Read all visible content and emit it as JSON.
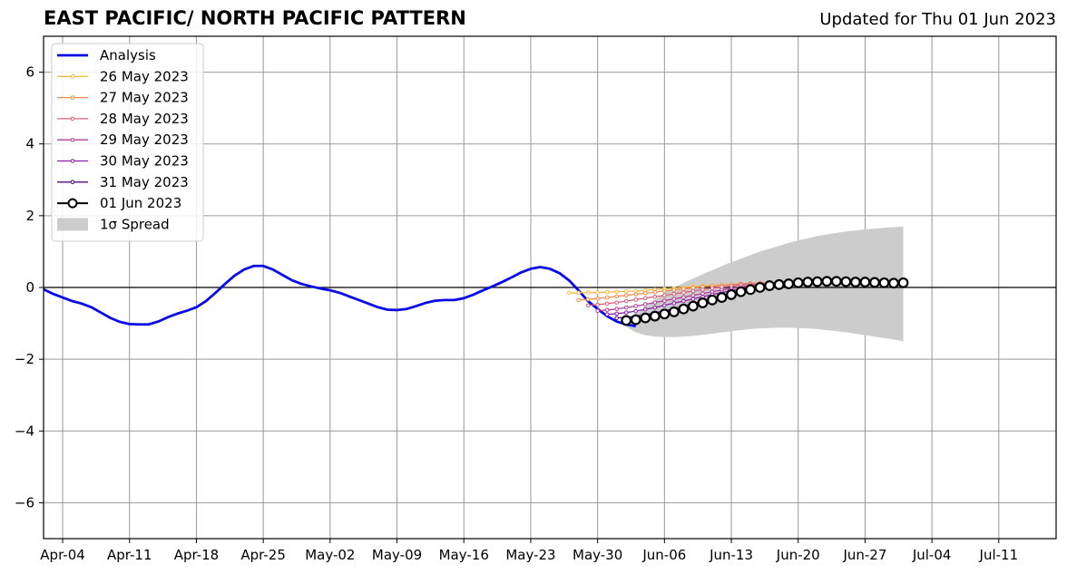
{
  "chart_data": {
    "type": "line",
    "title": "EAST PACIFIC/ NORTH PACIFIC PATTERN",
    "subtitle": "Updated for Thu 01 Jun 2023",
    "xlabel": "",
    "ylabel": "",
    "xlim": [
      "2023-04-02",
      "2023-07-17"
    ],
    "ylim": [
      -7,
      7
    ],
    "x_ticks": [
      "Apr-04",
      "Apr-11",
      "Apr-18",
      "Apr-25",
      "May-02",
      "May-09",
      "May-16",
      "May-23",
      "May-30",
      "Jun-06",
      "Jun-13",
      "Jun-20",
      "Jun-27",
      "Jul-04",
      "Jul-11"
    ],
    "y_ticks": [
      -6,
      -4,
      -2,
      0,
      2,
      4,
      6
    ],
    "y_tick_labels": [
      "−6",
      "−4",
      "−2",
      "0",
      "2",
      "4",
      "6"
    ],
    "grid": true,
    "legend_position": "upper-left",
    "colors": {
      "analysis": "#0a0ae6",
      "f0526": "#f5b942",
      "f0527": "#ee8a4a",
      "f0528": "#d9607a",
      "f0529": "#b63d95",
      "f0530": "#8c1faa",
      "f0531": "#4d0a8c",
      "f0601": "#000000",
      "spread": "#cccccc",
      "grid": "#999999"
    },
    "analysis": {
      "name": "Analysis",
      "start": "2023-04-02",
      "values": [
        -0.05,
        -0.18,
        -0.28,
        -0.38,
        -0.45,
        -0.55,
        -0.7,
        -0.85,
        -0.96,
        -1.02,
        -1.03,
        -1.03,
        -0.95,
        -0.83,
        -0.73,
        -0.65,
        -0.55,
        -0.38,
        -0.15,
        0.1,
        0.33,
        0.5,
        0.6,
        0.6,
        0.5,
        0.35,
        0.2,
        0.1,
        0.03,
        -0.03,
        -0.08,
        -0.15,
        -0.25,
        -0.35,
        -0.45,
        -0.55,
        -0.62,
        -0.63,
        -0.6,
        -0.52,
        -0.43,
        -0.37,
        -0.35,
        -0.35,
        -0.3,
        -0.2,
        -0.08,
        0.03,
        0.15,
        0.28,
        0.42,
        0.52,
        0.57,
        0.52,
        0.4,
        0.2,
        -0.08,
        -0.38,
        -0.6,
        -0.8,
        -0.95,
        -1.03,
        -1.08
      ]
    },
    "forecasts": [
      {
        "name": "26 May 2023",
        "start": "2023-05-27",
        "values": [
          -0.15,
          -0.15,
          -0.14,
          -0.14,
          -0.13,
          -0.12,
          -0.11,
          -0.1,
          -0.08,
          -0.06,
          -0.04,
          -0.02,
          0.0,
          0.02,
          0.04,
          0.06,
          0.07,
          0.08,
          0.09,
          0.1,
          0.11,
          0.12,
          0.12,
          0.13,
          0.13
        ]
      },
      {
        "name": "27 May 2023",
        "start": "2023-05-28",
        "values": [
          -0.35,
          -0.33,
          -0.31,
          -0.28,
          -0.25,
          -0.22,
          -0.19,
          -0.16,
          -0.13,
          -0.1,
          -0.07,
          -0.04,
          -0.01,
          0.02,
          0.04,
          0.06,
          0.08,
          0.1,
          0.11,
          0.12,
          0.13,
          0.14,
          0.14,
          0.15
        ]
      },
      {
        "name": "28 May 2023",
        "start": "2023-05-29",
        "values": [
          -0.5,
          -0.48,
          -0.45,
          -0.42,
          -0.38,
          -0.34,
          -0.3,
          -0.26,
          -0.22,
          -0.18,
          -0.14,
          -0.1,
          -0.06,
          -0.02,
          0.01,
          0.04,
          0.07,
          0.09,
          0.11,
          0.13,
          0.14,
          0.15,
          0.16
        ]
      },
      {
        "name": "29 May 2023",
        "start": "2023-05-30",
        "values": [
          -0.65,
          -0.63,
          -0.6,
          -0.56,
          -0.52,
          -0.47,
          -0.42,
          -0.37,
          -0.32,
          -0.27,
          -0.22,
          -0.17,
          -0.12,
          -0.07,
          -0.03,
          0.01,
          0.05,
          0.08,
          0.11,
          0.13,
          0.15,
          0.16
        ]
      },
      {
        "name": "30 May 2023",
        "start": "2023-05-31",
        "values": [
          -0.75,
          -0.73,
          -0.7,
          -0.66,
          -0.61,
          -0.56,
          -0.5,
          -0.44,
          -0.38,
          -0.32,
          -0.26,
          -0.2,
          -0.14,
          -0.09,
          -0.04,
          0.01,
          0.05,
          0.09,
          0.12,
          0.15,
          0.17
        ]
      },
      {
        "name": "31 May 2023",
        "start": "2023-06-01",
        "values": [
          -0.85,
          -0.83,
          -0.8,
          -0.76,
          -0.71,
          -0.65,
          -0.59,
          -0.52,
          -0.45,
          -0.38,
          -0.31,
          -0.24,
          -0.17,
          -0.11,
          -0.05,
          0.0,
          0.05,
          0.09,
          0.13,
          0.16
        ]
      },
      {
        "name": "01 Jun 2023",
        "start": "2023-06-02",
        "values": [
          -0.92,
          -0.9,
          -0.85,
          -0.8,
          -0.74,
          -0.68,
          -0.6,
          -0.52,
          -0.43,
          -0.35,
          -0.28,
          -0.2,
          -0.12,
          -0.06,
          0.0,
          0.05,
          0.08,
          0.1,
          0.13,
          0.15,
          0.16,
          0.17,
          0.17,
          0.16,
          0.15,
          0.15,
          0.14,
          0.13,
          0.12,
          0.13
        ]
      }
    ],
    "spread": {
      "name": "1σ Spread",
      "start": "2023-06-02",
      "upper": [
        -0.9,
        -0.75,
        -0.55,
        -0.35,
        -0.15,
        0.0,
        0.13,
        0.25,
        0.37,
        0.48,
        0.6,
        0.7,
        0.8,
        0.9,
        1.0,
        1.08,
        1.16,
        1.24,
        1.31,
        1.37,
        1.43,
        1.48,
        1.52,
        1.56,
        1.59,
        1.62,
        1.64,
        1.66,
        1.68,
        1.7
      ],
      "lower": [
        -1.1,
        -1.25,
        -1.33,
        -1.37,
        -1.38,
        -1.38,
        -1.37,
        -1.35,
        -1.32,
        -1.29,
        -1.25,
        -1.22,
        -1.19,
        -1.16,
        -1.14,
        -1.13,
        -1.12,
        -1.12,
        -1.13,
        -1.14,
        -1.16,
        -1.19,
        -1.22,
        -1.25,
        -1.29,
        -1.33,
        -1.37,
        -1.41,
        -1.45,
        -1.5
      ]
    }
  }
}
